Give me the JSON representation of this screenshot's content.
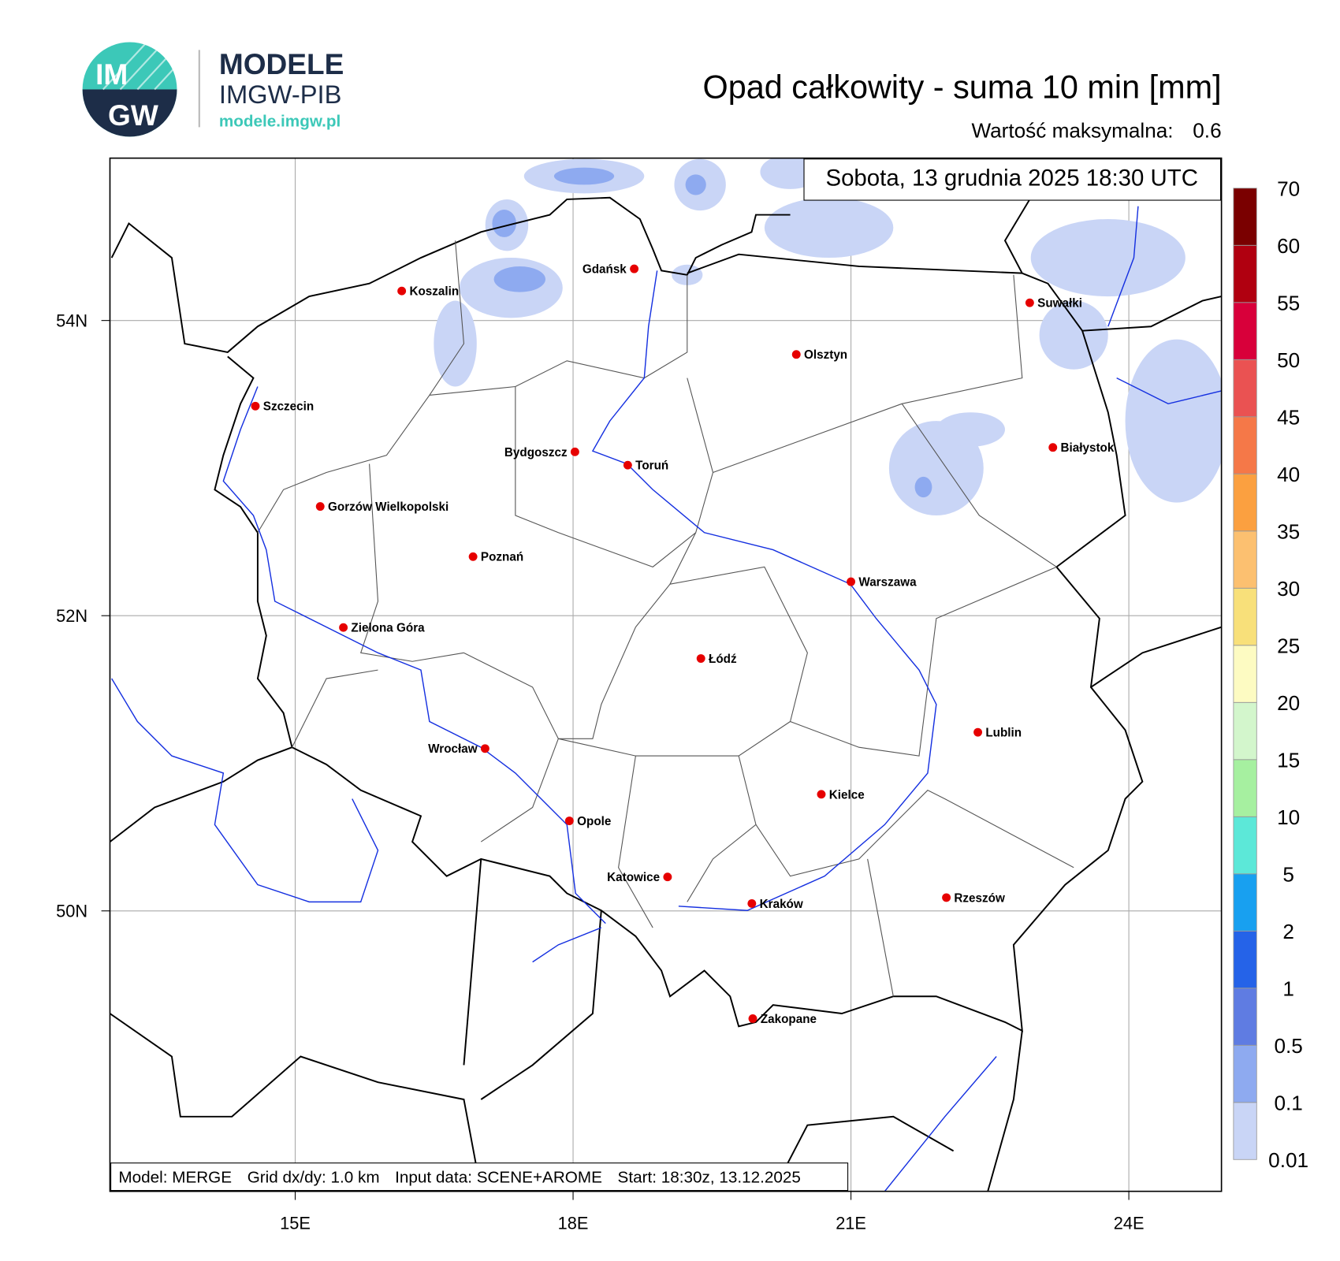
{
  "header": {
    "logo": {
      "mark_top": "IM",
      "mark_bottom": "GW",
      "name": "MODELE",
      "org": "IMGW-PIB",
      "url": "modele.imgw.pl"
    },
    "title": "Opad całkowity - suma 10 min [mm]",
    "max_label": "Wartość maksymalna:",
    "max_value": 0.6,
    "timestamp": "Sobota, 13 grudnia 2025 18:30 UTC"
  },
  "map": {
    "lon_range": [
      13,
      25
    ],
    "lat_range": [
      48.1,
      55.1
    ],
    "lon_ticks": [
      {
        "value": 15,
        "label": "15E"
      },
      {
        "value": 18,
        "label": "18E"
      },
      {
        "value": 21,
        "label": "21E"
      },
      {
        "value": 24,
        "label": "24E"
      }
    ],
    "lat_ticks": [
      {
        "value": 54,
        "label": "54N"
      },
      {
        "value": 52,
        "label": "52N"
      },
      {
        "value": 50,
        "label": "50N"
      }
    ],
    "grid": true,
    "city_color": "#e60000",
    "cities": [
      {
        "name": "Gdańsk",
        "lon": 18.66,
        "lat": 54.35
      },
      {
        "name": "Koszalin",
        "lon": 16.15,
        "lat": 54.2
      },
      {
        "name": "Szczecin",
        "lon": 14.57,
        "lat": 53.42
      },
      {
        "name": "Suwałki",
        "lon": 22.93,
        "lat": 54.12
      },
      {
        "name": "Olsztyn",
        "lon": 20.41,
        "lat": 53.77
      },
      {
        "name": "Bydgoszcz",
        "lon": 18.02,
        "lat": 53.11
      },
      {
        "name": "Toruń",
        "lon": 18.59,
        "lat": 53.02
      },
      {
        "name": "Białystok",
        "lon": 23.18,
        "lat": 53.14
      },
      {
        "name": "Gorzów Wielkopolski",
        "lon": 15.27,
        "lat": 52.74
      },
      {
        "name": "Poznań",
        "lon": 16.92,
        "lat": 52.4
      },
      {
        "name": "Warszawa",
        "lon": 21.0,
        "lat": 52.23
      },
      {
        "name": "Zielona Góra",
        "lon": 15.52,
        "lat": 51.92
      },
      {
        "name": "Łódź",
        "lon": 19.38,
        "lat": 51.71
      },
      {
        "name": "Lublin",
        "lon": 22.37,
        "lat": 51.21
      },
      {
        "name": "Wrocław",
        "lon": 17.05,
        "lat": 51.1
      },
      {
        "name": "Kielce",
        "lon": 20.68,
        "lat": 50.79
      },
      {
        "name": "Opole",
        "lon": 17.96,
        "lat": 50.61
      },
      {
        "name": "Katowice",
        "lon": 19.02,
        "lat": 50.23
      },
      {
        "name": "Kraków",
        "lon": 19.93,
        "lat": 50.05
      },
      {
        "name": "Rzeszów",
        "lon": 22.03,
        "lat": 50.09
      },
      {
        "name": "Zakopane",
        "lon": 19.94,
        "lat": 49.27
      }
    ]
  },
  "legend": {
    "levels": [
      0.01,
      0.1,
      0.5,
      1,
      2,
      5,
      10,
      15,
      20,
      25,
      30,
      35,
      40,
      45,
      50,
      55,
      60,
      70
    ],
    "colors": [
      "#c9d5f6",
      "#8eaaf0",
      "#5f7ce2",
      "#2563e8",
      "#18a0f0",
      "#5ce8d8",
      "#a6f0a0",
      "#d3f6cc",
      "#fdfbc2",
      "#f8e07a",
      "#fcc070",
      "#fba040",
      "#f57848",
      "#ea5252",
      "#d8003a",
      "#b00010",
      "#7a0000"
    ]
  },
  "footer": [
    "Model: MERGE",
    "Grid dx/dy: 1.0 km",
    "Input data: SCENE+AROME",
    "Start: 18:30z, 13.12.2025"
  ]
}
